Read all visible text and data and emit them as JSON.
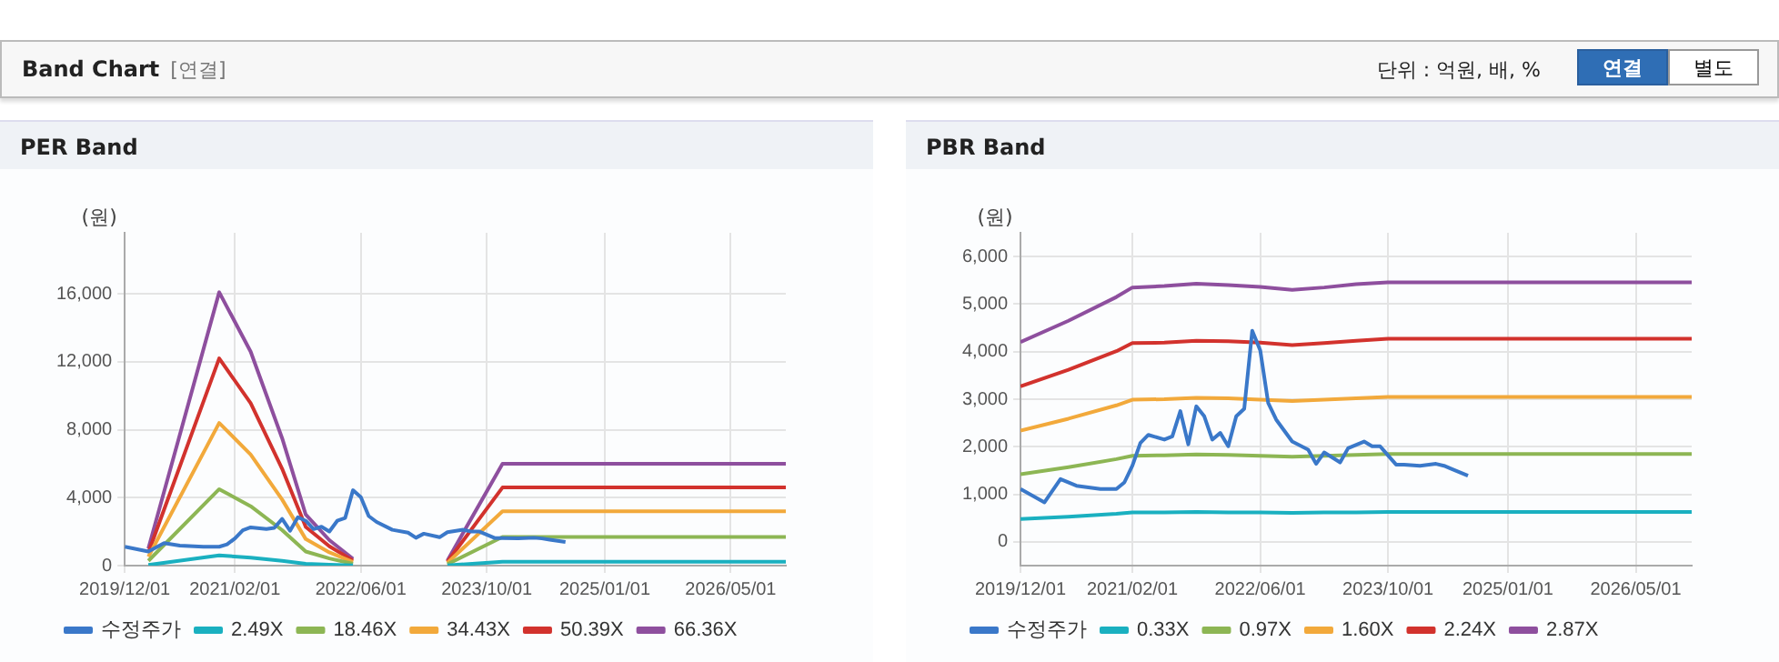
{
  "chart_data": [
    {
      "type": "line",
      "title": "PER Band",
      "ylabel": "(원)",
      "annotations": [
        "Band Chart",
        "[연결]",
        "단위 : 억원, 배, %",
        "연결",
        "별도"
      ],
      "xlim": [
        "2019-12-01",
        "2026-12-01"
      ],
      "xticks": [
        {
          "value": "2019-12-01",
          "label": "2019/12/01"
        },
        {
          "value": "2021-02-01",
          "label": "2021/02/01"
        },
        {
          "value": "2022-06-01",
          "label": "2022/06/01"
        },
        {
          "value": "2023-10-01",
          "label": "2023/10/01"
        },
        {
          "value": "2025-01-01",
          "label": "2025/01/01"
        },
        {
          "value": "2026-05-01",
          "label": "2026/05/01"
        }
      ],
      "ylim": [
        0,
        19600
      ],
      "yticks": [
        {
          "value": 0,
          "label": "0"
        },
        {
          "value": 4000,
          "label": "4,000"
        },
        {
          "value": 8000,
          "label": "8,000"
        },
        {
          "value": 12000,
          "label": "12,000"
        },
        {
          "value": 16000,
          "label": "16,000"
        }
      ],
      "grid": true,
      "legend": "bottom",
      "marker": "none",
      "line_style": "solid",
      "series": [
        {
          "name": "수정주가",
          "color": "#3a78c9",
          "x": [
            "2019-12",
            "2020-03",
            "2020-05",
            "2020-07",
            "2020-10",
            "2020-12",
            "2021-01",
            "2021-02",
            "2021-03",
            "2021-04",
            "2021-06",
            "2021-07",
            "2021-08",
            "2021-09",
            "2021-10",
            "2021-11",
            "2021-12",
            "2022-01",
            "2022-02",
            "2022-03",
            "2022-04",
            "2022-05",
            "2022-06",
            "2022-07",
            "2022-08",
            "2022-10",
            "2022-12",
            "2023-01",
            "2023-02",
            "2023-04",
            "2023-05",
            "2023-07",
            "2023-08",
            "2023-09",
            "2023-11",
            "2023-12",
            "2024-02",
            "2024-04",
            "2024-05",
            "2024-06",
            "2024-08"
          ],
          "values": [
            1110,
            830,
            1320,
            1180,
            1110,
            1110,
            1250,
            1600,
            2080,
            2250,
            2150,
            2220,
            2750,
            2050,
            2850,
            2640,
            2150,
            2290,
            2010,
            2640,
            2800,
            4440,
            4030,
            2920,
            2570,
            2110,
            1940,
            1640,
            1880,
            1670,
            1970,
            2110,
            2010,
            2010,
            1625,
            1625,
            1600,
            1640,
            1600,
            1530,
            1390
          ]
        },
        {
          "name": "2.49X",
          "color": "#1ab0c0",
          "x": [
            "2020-03",
            "2020-12",
            "2021-04",
            "2021-08",
            "2021-11",
            "2022-02",
            "2022-05",
            "2022-11",
            "2023-05",
            "2023-12",
            "2026-12"
          ],
          "values": [
            40,
            600,
            470,
            280,
            110,
            60,
            20,
            null,
            10,
            230,
            230
          ]
        },
        {
          "name": "18.46X",
          "color": "#8db654",
          "x": [
            "2020-03",
            "2020-12",
            "2021-04",
            "2021-08",
            "2021-11",
            "2022-02",
            "2022-05",
            "2022-11",
            "2023-05",
            "2023-12",
            "2026-12"
          ],
          "values": [
            280,
            4500,
            3500,
            2090,
            830,
            420,
            110,
            null,
            80,
            1690,
            1690
          ]
        },
        {
          "name": "34.43X",
          "color": "#f2a93b",
          "x": [
            "2020-03",
            "2020-12",
            "2021-04",
            "2021-08",
            "2021-11",
            "2022-02",
            "2022-05",
            "2022-11",
            "2023-05",
            "2023-12",
            "2026-12"
          ],
          "values": [
            520,
            8400,
            6540,
            3890,
            1560,
            780,
            210,
            null,
            160,
            3200,
            3200
          ]
        },
        {
          "name": "50.39X",
          "color": "#d2322d",
          "x": [
            "2020-03",
            "2020-12",
            "2021-04",
            "2021-08",
            "2021-11",
            "2022-02",
            "2022-05",
            "2022-11",
            "2023-05",
            "2023-12",
            "2026-12"
          ],
          "values": [
            760,
            12200,
            9570,
            5700,
            2280,
            1140,
            300,
            null,
            230,
            4600,
            4600
          ]
        },
        {
          "name": "66.36X",
          "color": "#8e4f9e",
          "x": [
            "2020-03",
            "2020-12",
            "2021-04",
            "2021-08",
            "2021-11",
            "2022-02",
            "2022-05",
            "2022-11",
            "2023-05",
            "2023-12",
            "2026-12"
          ],
          "values": [
            1000,
            16100,
            12600,
            7500,
            3000,
            1500,
            400,
            null,
            300,
            6000,
            6000
          ]
        }
      ]
    },
    {
      "type": "line",
      "title": "PBR Band",
      "ylabel": "(원)",
      "xlim": [
        "2019-12-01",
        "2026-12-01"
      ],
      "xticks": [
        {
          "value": "2019-12-01",
          "label": "2019/12/01"
        },
        {
          "value": "2021-02-01",
          "label": "2021/02/01"
        },
        {
          "value": "2022-06-01",
          "label": "2022/06/01"
        },
        {
          "value": "2023-10-01",
          "label": "2023/10/01"
        },
        {
          "value": "2025-01-01",
          "label": "2025/01/01"
        },
        {
          "value": "2026-05-01",
          "label": "2026/05/01"
        }
      ],
      "ylim": [
        -500,
        6500
      ],
      "yticks": [
        {
          "value": 0,
          "label": "0"
        },
        {
          "value": 1000,
          "label": "1,000"
        },
        {
          "value": 2000,
          "label": "2,000"
        },
        {
          "value": 3000,
          "label": "3,000"
        },
        {
          "value": 4000,
          "label": "4,000"
        },
        {
          "value": 5000,
          "label": "5,000"
        },
        {
          "value": 6000,
          "label": "6,000"
        }
      ],
      "grid": true,
      "legend": "bottom",
      "marker": "none",
      "line_style": "solid",
      "series": [
        {
          "name": "수정주가",
          "color": "#3a78c9",
          "x": [
            "2019-12",
            "2020-03",
            "2020-05",
            "2020-07",
            "2020-10",
            "2020-12",
            "2021-01",
            "2021-02",
            "2021-03",
            "2021-04",
            "2021-06",
            "2021-07",
            "2021-08",
            "2021-09",
            "2021-10",
            "2021-11",
            "2021-12",
            "2022-01",
            "2022-02",
            "2022-03",
            "2022-04",
            "2022-05",
            "2022-06",
            "2022-07",
            "2022-08",
            "2022-10",
            "2022-12",
            "2023-01",
            "2023-02",
            "2023-04",
            "2023-05",
            "2023-07",
            "2023-08",
            "2023-09",
            "2023-11",
            "2023-12",
            "2024-02",
            "2024-04",
            "2024-05",
            "2024-06",
            "2024-08"
          ],
          "values": [
            1110,
            830,
            1320,
            1180,
            1110,
            1110,
            1250,
            1600,
            2080,
            2250,
            2150,
            2220,
            2750,
            2050,
            2850,
            2640,
            2150,
            2290,
            2010,
            2640,
            2800,
            4440,
            4030,
            2920,
            2570,
            2110,
            1940,
            1640,
            1880,
            1670,
            1970,
            2110,
            2010,
            2010,
            1625,
            1625,
            1600,
            1640,
            1600,
            1530,
            1390
          ]
        },
        {
          "name": "0.33X",
          "color": "#1ab0c0",
          "x": [
            "2019-12",
            "2020-06",
            "2020-12",
            "2021-02",
            "2021-06",
            "2021-10",
            "2022-02",
            "2022-06",
            "2022-10",
            "2023-02",
            "2023-06",
            "2023-10",
            "2026-12"
          ],
          "values": [
            480,
            530,
            590,
            620,
            620,
            630,
            620,
            620,
            610,
            620,
            620,
            630,
            630
          ]
        },
        {
          "name": "0.97X",
          "color": "#8db654",
          "x": [
            "2019-12",
            "2020-06",
            "2020-12",
            "2021-02",
            "2021-06",
            "2021-10",
            "2022-02",
            "2022-06",
            "2022-10",
            "2023-02",
            "2023-06",
            "2023-10",
            "2026-12"
          ],
          "values": [
            1420,
            1570,
            1740,
            1810,
            1820,
            1840,
            1830,
            1810,
            1790,
            1810,
            1830,
            1850,
            1850
          ]
        },
        {
          "name": "1.60X",
          "color": "#f2a93b",
          "x": [
            "2019-12",
            "2020-06",
            "2020-12",
            "2021-02",
            "2021-06",
            "2021-10",
            "2022-02",
            "2022-06",
            "2022-10",
            "2023-02",
            "2023-06",
            "2023-10",
            "2026-12"
          ],
          "values": [
            2340,
            2590,
            2870,
            2990,
            3000,
            3030,
            3020,
            2990,
            2960,
            2990,
            3020,
            3050,
            3050
          ]
        },
        {
          "name": "2.24X",
          "color": "#d2322d",
          "x": [
            "2019-12",
            "2020-06",
            "2020-12",
            "2021-02",
            "2021-06",
            "2021-10",
            "2022-02",
            "2022-06",
            "2022-10",
            "2023-02",
            "2023-06",
            "2023-10",
            "2026-12"
          ],
          "values": [
            3270,
            3620,
            4010,
            4180,
            4190,
            4230,
            4220,
            4190,
            4140,
            4180,
            4230,
            4270,
            4270
          ]
        },
        {
          "name": "2.87X",
          "color": "#8e4f9e",
          "x": [
            "2019-12",
            "2020-06",
            "2020-12",
            "2021-02",
            "2021-06",
            "2021-10",
            "2022-02",
            "2022-06",
            "2022-10",
            "2023-02",
            "2023-06",
            "2023-10",
            "2026-12"
          ],
          "values": [
            4200,
            4650,
            5150,
            5350,
            5380,
            5430,
            5400,
            5360,
            5300,
            5350,
            5420,
            5460,
            5460
          ]
        }
      ]
    }
  ]
}
